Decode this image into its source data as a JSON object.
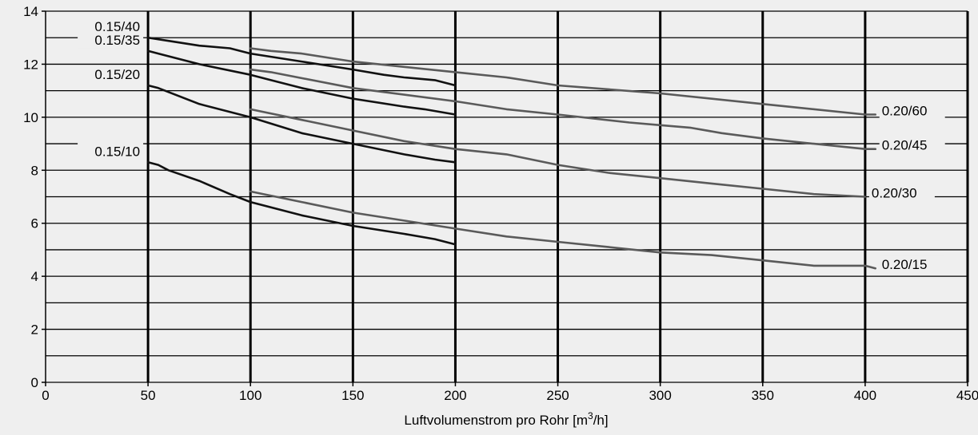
{
  "chart_data": {
    "type": "line",
    "title": "",
    "xlabel": "Luftvolumenstrom pro Rohr [m",
    "xlabel_sup": "3",
    "xlabel_suffix": "/h]",
    "ylabel": "",
    "xlim": [
      0,
      450
    ],
    "ylim": [
      0,
      14
    ],
    "x_ticks": [
      0,
      50,
      100,
      150,
      200,
      250,
      300,
      350,
      400,
      450
    ],
    "y_ticks": [
      0,
      2,
      4,
      6,
      8,
      10,
      12,
      14
    ],
    "grid": true,
    "colors": {
      "d015": "#111111",
      "d020": "#5a5a5a",
      "grid": "#000000",
      "background": "#efefef"
    },
    "series": [
      {
        "name": "0.15/40",
        "group": "d015",
        "x": [
          50,
          75,
          90,
          100,
          125,
          150,
          165,
          175,
          190,
          200
        ],
        "y": [
          13.0,
          12.7,
          12.6,
          12.4,
          12.1,
          11.8,
          11.6,
          11.5,
          11.4,
          11.2
        ]
      },
      {
        "name": "0.15/35",
        "group": "d015",
        "x": [
          50,
          55,
          75,
          100,
          110,
          125,
          150,
          175,
          185,
          200
        ],
        "y": [
          12.5,
          12.4,
          12.0,
          11.6,
          11.4,
          11.1,
          10.7,
          10.4,
          10.3,
          10.1
        ]
      },
      {
        "name": "0.15/20",
        "group": "d015",
        "x": [
          50,
          55,
          75,
          100,
          125,
          150,
          175,
          190,
          200
        ],
        "y": [
          11.2,
          11.1,
          10.5,
          10.0,
          9.4,
          9.0,
          8.6,
          8.4,
          8.3
        ]
      },
      {
        "name": "0.15/10",
        "group": "d015",
        "x": [
          50,
          55,
          60,
          75,
          90,
          100,
          125,
          150,
          175,
          190,
          200
        ],
        "y": [
          8.3,
          8.2,
          8.0,
          7.6,
          7.1,
          6.8,
          6.3,
          5.9,
          5.6,
          5.4,
          5.2
        ]
      },
      {
        "name": "0.20/60",
        "group": "d020",
        "x": [
          100,
          110,
          125,
          150,
          175,
          200,
          225,
          250,
          300,
          350,
          400,
          405
        ],
        "y": [
          12.6,
          12.5,
          12.4,
          12.1,
          11.9,
          11.7,
          11.5,
          11.2,
          10.9,
          10.5,
          10.1,
          10.1
        ]
      },
      {
        "name": "0.20/45",
        "group": "d020",
        "x": [
          100,
          110,
          150,
          200,
          225,
          250,
          285,
          300,
          315,
          330,
          350,
          375,
          400,
          405
        ],
        "y": [
          11.8,
          11.7,
          11.1,
          10.6,
          10.3,
          10.1,
          9.8,
          9.7,
          9.6,
          9.4,
          9.2,
          9.0,
          8.8,
          8.8
        ]
      },
      {
        "name": "0.20/30",
        "group": "d020",
        "x": [
          100,
          125,
          150,
          175,
          200,
          225,
          250,
          275,
          300,
          325,
          350,
          375,
          400
        ],
        "y": [
          10.3,
          9.9,
          9.5,
          9.1,
          8.8,
          8.6,
          8.2,
          7.9,
          7.7,
          7.5,
          7.3,
          7.1,
          7.0
        ]
      },
      {
        "name": "0.20/15",
        "group": "d020",
        "x": [
          100,
          125,
          150,
          175,
          200,
          225,
          250,
          275,
          300,
          325,
          350,
          375,
          400,
          405
        ],
        "y": [
          7.2,
          6.8,
          6.4,
          6.1,
          5.8,
          5.5,
          5.3,
          5.1,
          4.9,
          4.8,
          4.6,
          4.4,
          4.4,
          4.3
        ]
      }
    ]
  }
}
